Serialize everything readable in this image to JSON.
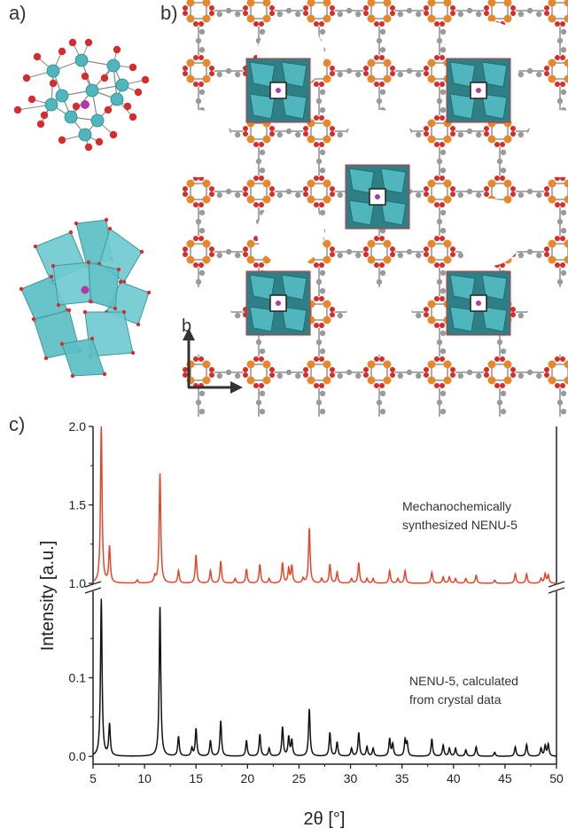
{
  "panels": {
    "a_label": "a)",
    "b_label": "b)",
    "c_label": "c)",
    "b_axis_b": "b",
    "b_axis_a": "a"
  },
  "colors": {
    "cyan": "#4fb6bd",
    "dark_cyan": "#2f7f86",
    "red": "#d42d2d",
    "orange": "#e8862a",
    "gray": "#9a9a9a",
    "magenta": "#b03aa8",
    "red_trace": "#e4462c",
    "black_trace": "#111111"
  },
  "chart_data": {
    "type": "line",
    "xlabel": "2θ [°]",
    "ylabel": "Intensity [a.u.]",
    "xlim": [
      5,
      50
    ],
    "x_ticks": [
      "5",
      "10",
      "15",
      "20",
      "25",
      "30",
      "35",
      "40",
      "45",
      "50"
    ],
    "upper_ticks": [
      "1.0",
      "1.5",
      "2.0"
    ],
    "lower_ticks": [
      "0.0",
      "0.1"
    ],
    "upper_ylim": [
      1.0,
      2.0
    ],
    "lower_ylim": [
      -0.01,
      0.21
    ],
    "series": [
      {
        "name_lines": [
          "Mechanochemically",
          "synthesized NENU-5"
        ],
        "color": "#e4462c",
        "peaks": [
          [
            5.8,
            2.0
          ],
          [
            6.6,
            1.23
          ],
          [
            9.3,
            1.02
          ],
          [
            11.0,
            1.04
          ],
          [
            11.5,
            1.7
          ],
          [
            13.3,
            1.08
          ],
          [
            15.0,
            1.18
          ],
          [
            16.4,
            1.08
          ],
          [
            17.4,
            1.14
          ],
          [
            18.8,
            1.03
          ],
          [
            19.9,
            1.09
          ],
          [
            21.2,
            1.12
          ],
          [
            22.1,
            1.03
          ],
          [
            23.4,
            1.13
          ],
          [
            24.0,
            1.09
          ],
          [
            24.3,
            1.11
          ],
          [
            25.4,
            1.03
          ],
          [
            26.0,
            1.35
          ],
          [
            27.2,
            1.03
          ],
          [
            28.0,
            1.12
          ],
          [
            28.7,
            1.07
          ],
          [
            30.1,
            1.03
          ],
          [
            30.8,
            1.13
          ],
          [
            31.6,
            1.03
          ],
          [
            32.2,
            1.03
          ],
          [
            33.8,
            1.08
          ],
          [
            34.6,
            1.03
          ],
          [
            35.3,
            1.08
          ],
          [
            37.9,
            1.07
          ],
          [
            39.0,
            1.04
          ],
          [
            39.6,
            1.04
          ],
          [
            40.2,
            1.03
          ],
          [
            41.2,
            1.03
          ],
          [
            42.2,
            1.05
          ],
          [
            44.0,
            1.02
          ],
          [
            46.0,
            1.06
          ],
          [
            47.1,
            1.06
          ],
          [
            48.5,
            1.03
          ],
          [
            48.9,
            1.06
          ],
          [
            49.2,
            1.05
          ]
        ]
      },
      {
        "name_lines": [
          "NENU-5, calculated",
          "from crystal data"
        ],
        "color": "#111111",
        "peaks": [
          [
            5.8,
            0.2
          ],
          [
            6.6,
            0.04
          ],
          [
            11.5,
            0.19
          ],
          [
            13.3,
            0.025
          ],
          [
            14.6,
            0.01
          ],
          [
            15.0,
            0.035
          ],
          [
            16.4,
            0.02
          ],
          [
            17.4,
            0.045
          ],
          [
            19.9,
            0.02
          ],
          [
            21.2,
            0.028
          ],
          [
            22.1,
            0.01
          ],
          [
            23.4,
            0.037
          ],
          [
            24.0,
            0.024
          ],
          [
            24.3,
            0.02
          ],
          [
            26.0,
            0.06
          ],
          [
            28.0,
            0.03
          ],
          [
            28.7,
            0.018
          ],
          [
            30.1,
            0.01
          ],
          [
            30.8,
            0.03
          ],
          [
            31.6,
            0.012
          ],
          [
            32.2,
            0.01
          ],
          [
            33.8,
            0.022
          ],
          [
            34.1,
            0.015
          ],
          [
            35.3,
            0.02
          ],
          [
            35.5,
            0.016
          ],
          [
            37.9,
            0.022
          ],
          [
            39.0,
            0.014
          ],
          [
            39.6,
            0.01
          ],
          [
            40.2,
            0.01
          ],
          [
            41.2,
            0.008
          ],
          [
            42.2,
            0.012
          ],
          [
            44.0,
            0.005
          ],
          [
            46.0,
            0.012
          ],
          [
            47.1,
            0.015
          ],
          [
            48.5,
            0.01
          ],
          [
            48.9,
            0.013
          ],
          [
            49.2,
            0.015
          ]
        ]
      }
    ]
  }
}
